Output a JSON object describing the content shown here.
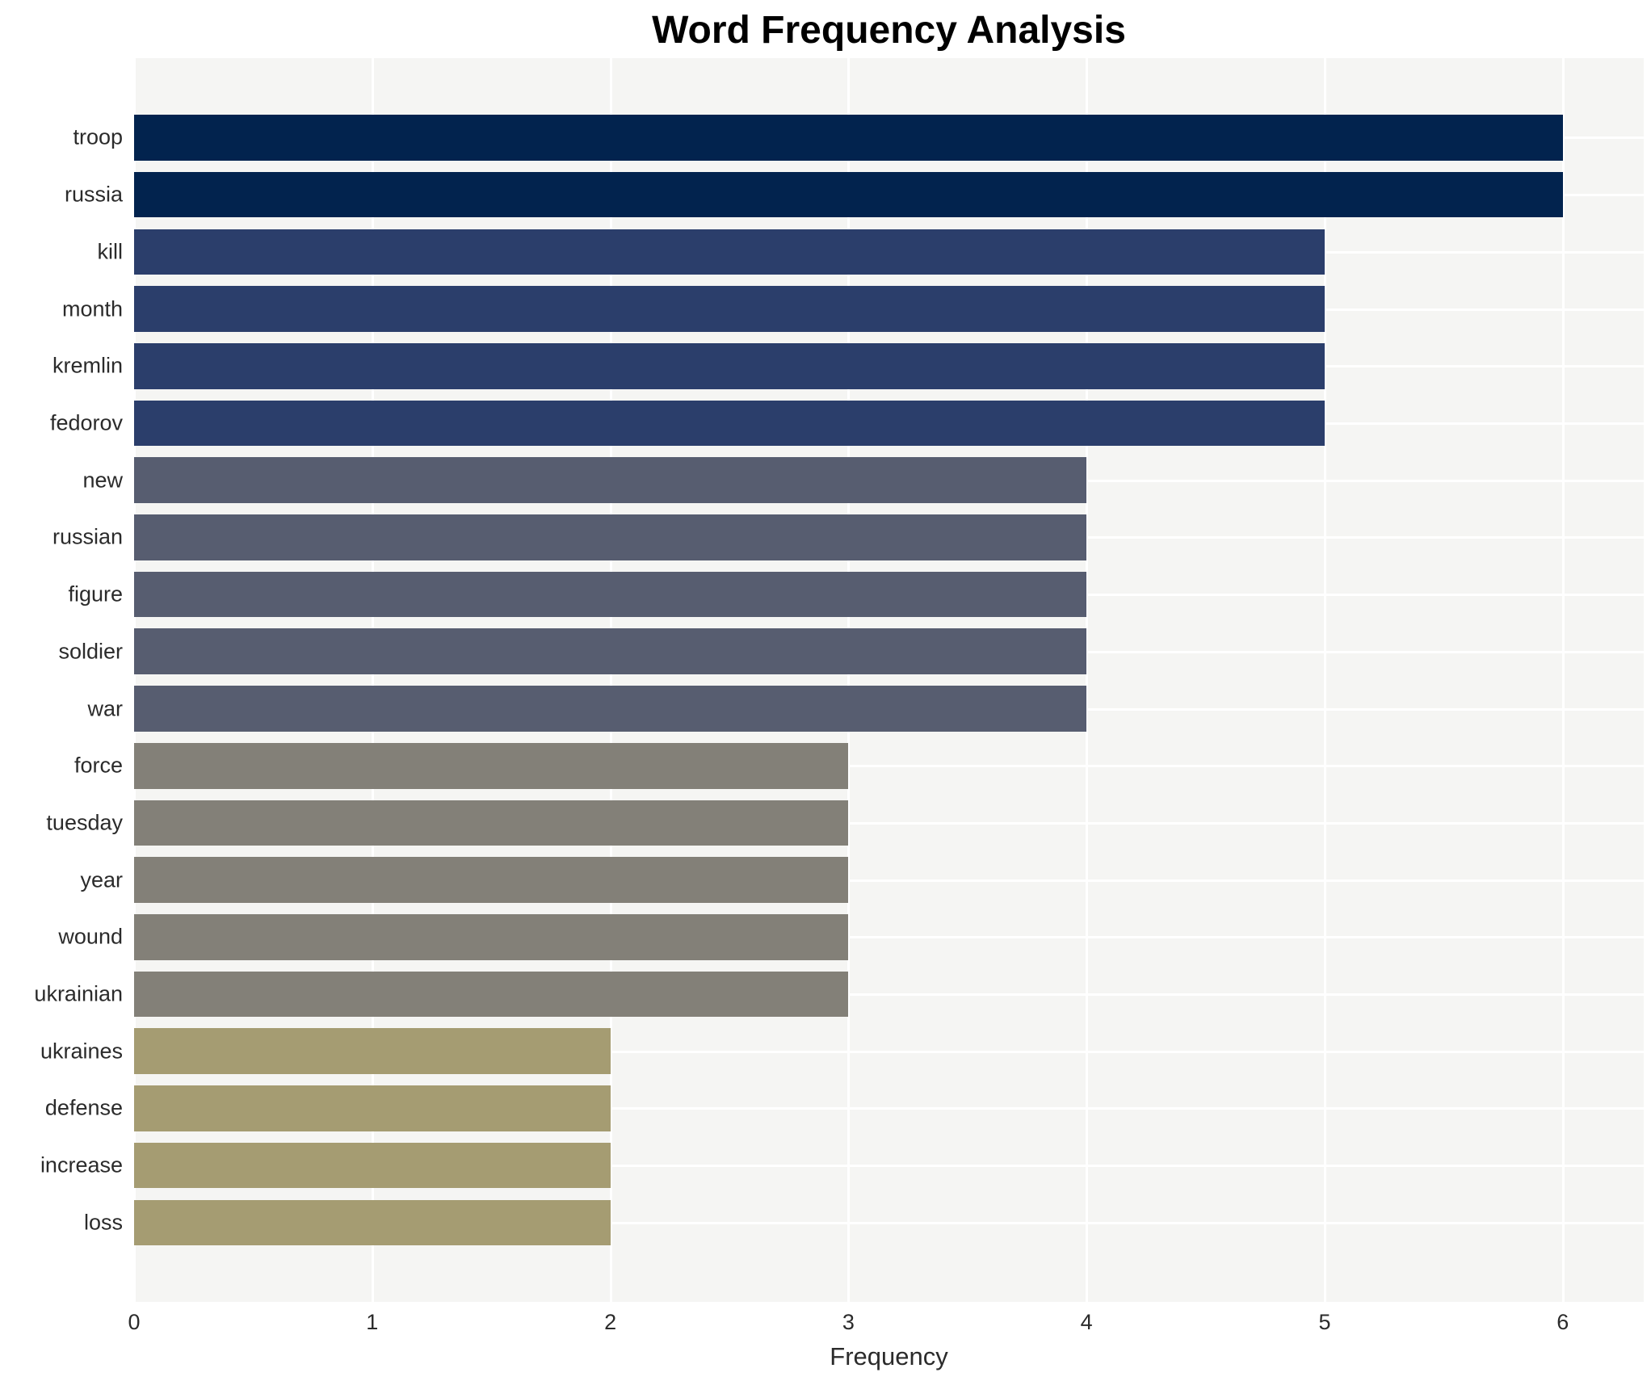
{
  "chart_data": {
    "type": "bar",
    "orientation": "horizontal",
    "title": "Word Frequency Analysis",
    "xlabel": "Frequency",
    "ylabel": "",
    "categories": [
      "troop",
      "russia",
      "kill",
      "month",
      "kremlin",
      "fedorov",
      "new",
      "russian",
      "figure",
      "soldier",
      "war",
      "force",
      "tuesday",
      "year",
      "wound",
      "ukrainian",
      "ukraines",
      "defense",
      "increase",
      "loss"
    ],
    "values": [
      6,
      6,
      5,
      5,
      5,
      5,
      4,
      4,
      4,
      4,
      4,
      3,
      3,
      3,
      3,
      3,
      2,
      2,
      2,
      2
    ],
    "xticks": [
      0,
      1,
      2,
      3,
      4,
      5,
      6
    ],
    "xlim": [
      0,
      6.34
    ],
    "grid": true,
    "legend_position": "none",
    "value_colors": {
      "6": "#02234e",
      "5": "#2b3e6b",
      "4": "#575d70",
      "3": "#838078",
      "2": "#a59c72"
    },
    "plot_bg": "#f5f5f3",
    "grid_color": "#ffffff",
    "text_color": "#2b2b2b",
    "title_color": "#000000"
  }
}
